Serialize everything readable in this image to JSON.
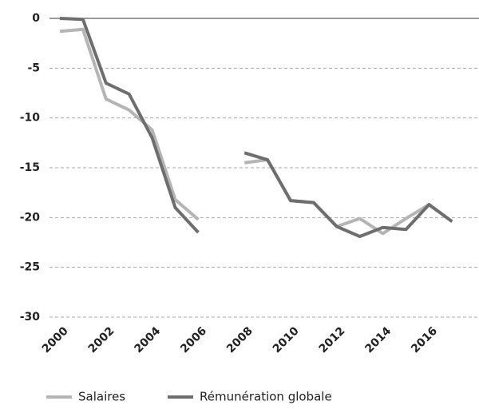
{
  "chart_data": {
    "type": "line",
    "categories": [
      "2000",
      null,
      "2002",
      null,
      "2004",
      null,
      "2006",
      null,
      "2008",
      null,
      "2010",
      null,
      "2012",
      null,
      "2014",
      null,
      "2016",
      null
    ],
    "series": [
      {
        "name": "Salaires",
        "color": "#b5b5b5",
        "values": [
          -1.3,
          -1.1,
          -8.1,
          -9.2,
          -11.2,
          -18.2,
          -20.2,
          null,
          -14.5,
          -14.2,
          -18.3,
          -18.5,
          -20.9,
          -20.1,
          -21.6,
          -20.1,
          -18.7,
          -20.4
        ]
      },
      {
        "name": "Rémunération globale",
        "color": "#6e6e6e",
        "values": [
          0,
          -0.1,
          -6.5,
          -7.6,
          -12,
          -19,
          -21.5,
          null,
          -13.5,
          -14.2,
          -18.3,
          -18.5,
          -20.9,
          -21.9,
          -21,
          -21.2,
          -18.7,
          -20.4
        ]
      }
    ],
    "ylim": [
      -30,
      0
    ],
    "yticks": [
      0,
      -5,
      -10,
      -15,
      -20,
      -25,
      -30
    ],
    "grid": true
  }
}
